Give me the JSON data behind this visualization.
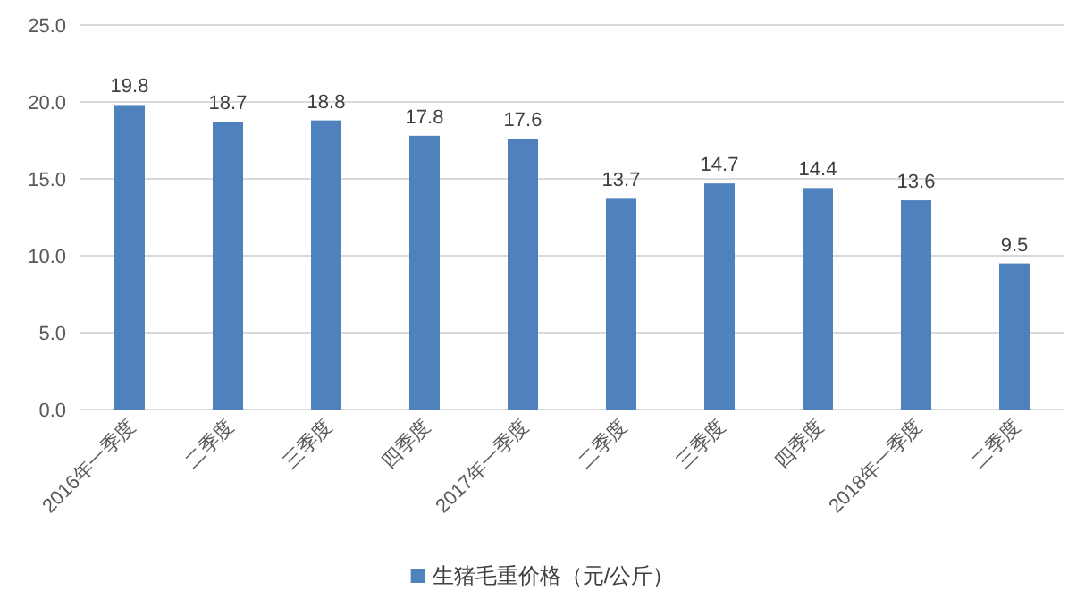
{
  "chart_data": {
    "type": "bar",
    "categories": [
      "2016年一季度",
      "二季度",
      "三季度",
      "四季度",
      "2017年一季度",
      "二季度",
      "三季度",
      "四季度",
      "2018年一季度",
      "二季度"
    ],
    "series": [
      {
        "name": "生猪毛重价格（元/公斤）",
        "color": "#4f81bd",
        "values": [
          19.8,
          18.7,
          18.8,
          17.8,
          17.6,
          13.7,
          14.7,
          14.4,
          13.6,
          9.5
        ]
      }
    ],
    "ylim": [
      0,
      25
    ],
    "yticks": [
      {
        "value": 0,
        "label": "0.0"
      },
      {
        "value": 5,
        "label": "5.0"
      },
      {
        "value": 10,
        "label": "10.0"
      },
      {
        "value": 15,
        "label": "15.0"
      },
      {
        "value": 20,
        "label": "20.0"
      },
      {
        "value": 25,
        "label": "25.0"
      }
    ],
    "grid": "y",
    "data_labels": true,
    "legend": "bottom"
  }
}
